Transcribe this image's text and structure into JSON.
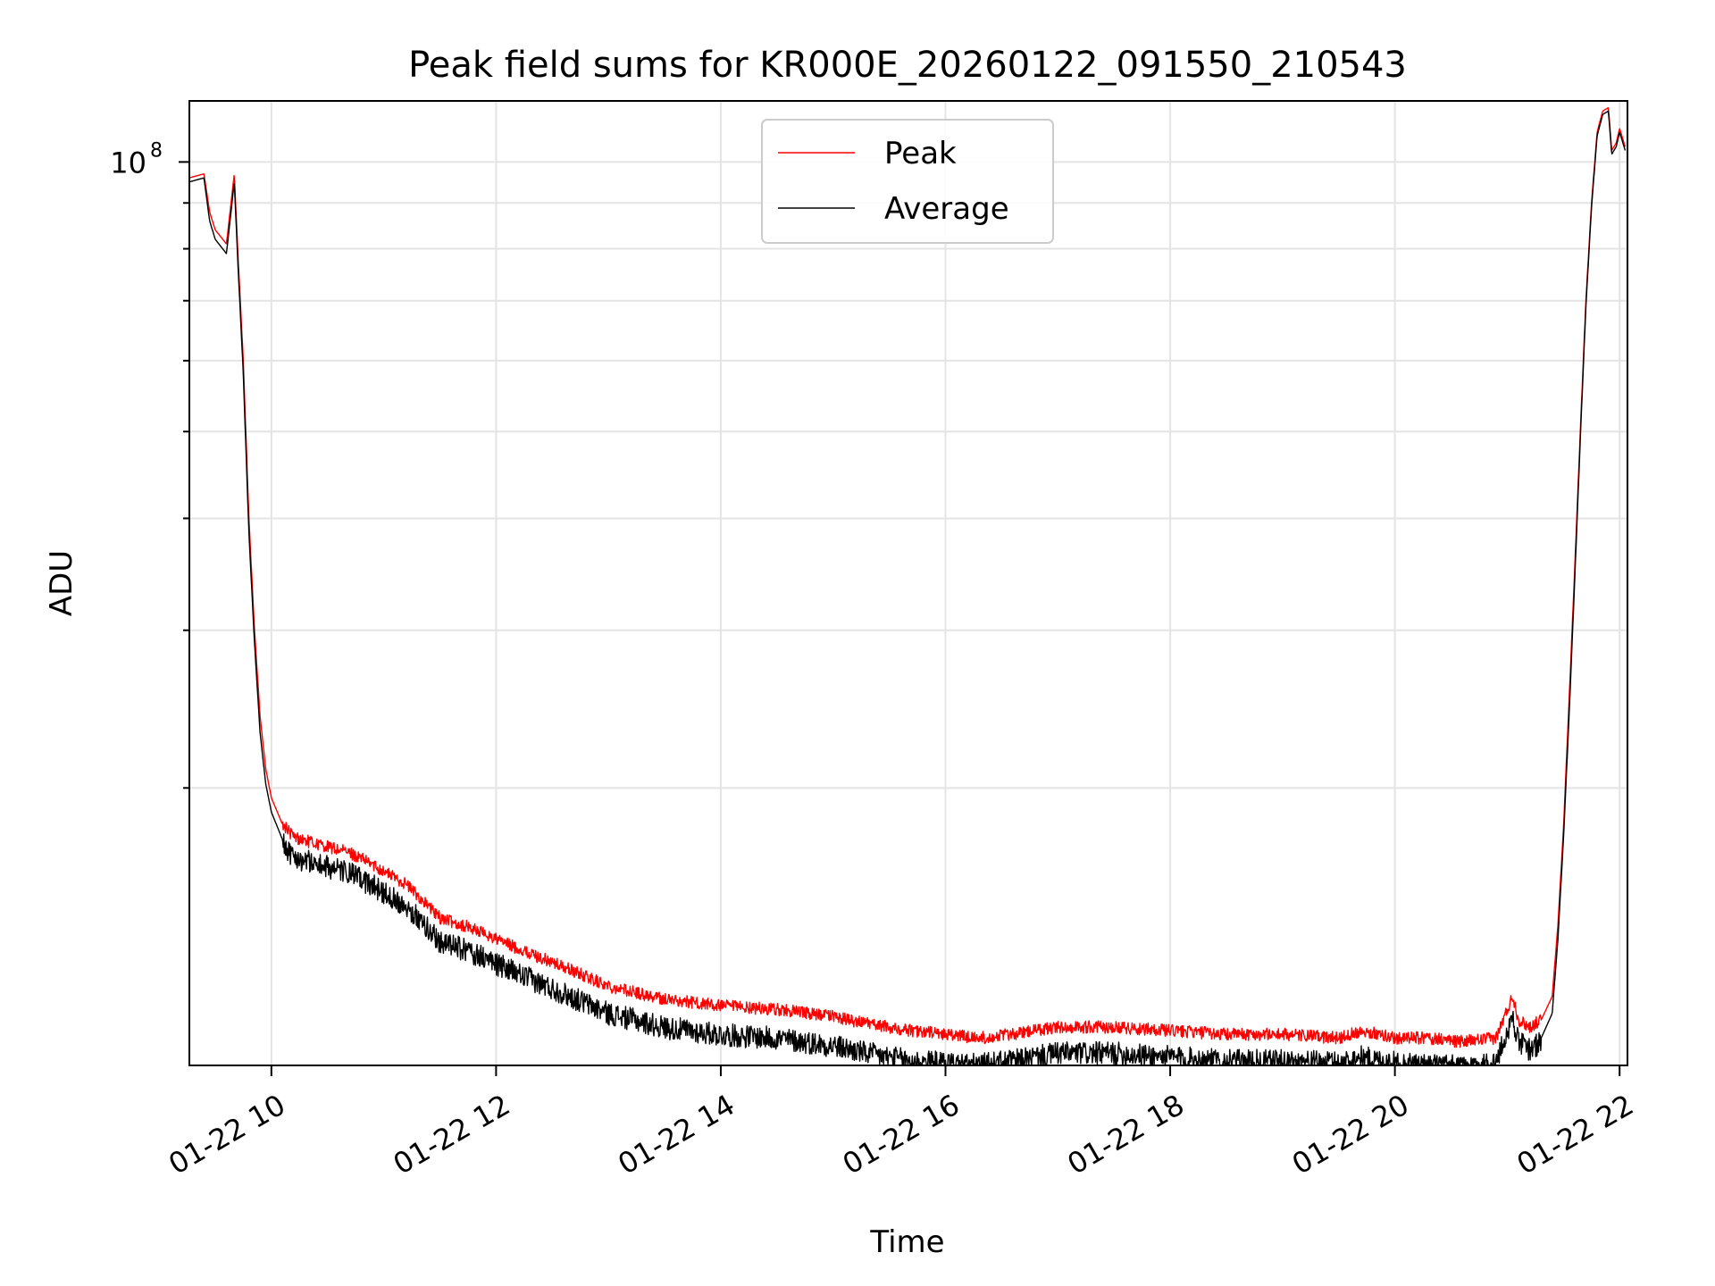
{
  "chart_data": {
    "type": "line",
    "title": "Peak field sums for KR000E_20260122_091550_210543",
    "xlabel": "Time",
    "ylabel": "ADU",
    "x_unit": "hour of day (01-22)",
    "xlim": [
      9.27,
      22.07
    ],
    "ylim": [
      9800000,
      117000000
    ],
    "yscale": "log",
    "grid": true,
    "legend_position": "upper center",
    "x_tick_values": [
      10,
      12,
      14,
      16,
      18,
      20,
      22
    ],
    "x_tick_labels": [
      "01-22 10",
      "01-22 12",
      "01-22 14",
      "01-22 16",
      "01-22 18",
      "01-22 20",
      "01-22 22"
    ],
    "y_tick_values": [
      100000000
    ],
    "y_tick_labels": [
      "10"
    ],
    "y_tick_exponents": [
      "8"
    ],
    "y_minor_tick_values": [
      20000000,
      30000000,
      40000000,
      50000000,
      60000000,
      70000000,
      80000000,
      90000000
    ],
    "series": [
      {
        "name": "Peak",
        "color": "#ff0000",
        "x": [
          9.27,
          9.4,
          9.45,
          9.5,
          9.6,
          9.67,
          9.7,
          9.75,
          9.8,
          9.85,
          9.9,
          9.95,
          10.0,
          10.1,
          10.2,
          10.4,
          10.7,
          10.9,
          11.2,
          11.5,
          11.8,
          12.2,
          12.6,
          13.0,
          13.5,
          14.0,
          14.5,
          15.0,
          15.3,
          15.7,
          16.0,
          16.3,
          16.6,
          17.0,
          17.5,
          18.0,
          18.5,
          19.0,
          19.5,
          19.7,
          20.0,
          20.3,
          20.6,
          20.9,
          21.05,
          21.1,
          21.2,
          21.3,
          21.4,
          21.45,
          21.5,
          21.55,
          21.6,
          21.65,
          21.7,
          21.75,
          21.8,
          21.85,
          21.9,
          21.93,
          21.97,
          22.0,
          22.05
        ],
        "values": [
          96000000,
          97000000,
          88000000,
          84000000,
          81000000,
          97000000,
          80000000,
          60000000,
          40000000,
          30000000,
          24000000,
          21000000,
          19500000,
          18200000,
          17600000,
          17300000,
          16900000,
          16400000,
          15600000,
          14300000,
          13900000,
          13200000,
          12600000,
          12000000,
          11600000,
          11400000,
          11300000,
          11100000,
          10900000,
          10700000,
          10600000,
          10500000,
          10600000,
          10800000,
          10800000,
          10700000,
          10600000,
          10600000,
          10500000,
          10700000,
          10500000,
          10500000,
          10400000,
          10500000,
          11700000,
          11000000,
          10800000,
          11000000,
          11700000,
          14000000,
          18000000,
          25000000,
          35000000,
          50000000,
          70000000,
          90000000,
          108000000,
          114000000,
          115000000,
          103000000,
          105000000,
          109000000,
          104000000
        ]
      },
      {
        "name": "Average",
        "color": "#000000",
        "x": [
          9.27,
          9.4,
          9.45,
          9.5,
          9.6,
          9.67,
          9.7,
          9.75,
          9.8,
          9.85,
          9.9,
          9.95,
          10.0,
          10.1,
          10.2,
          10.4,
          10.7,
          10.9,
          11.2,
          11.5,
          11.8,
          12.2,
          12.6,
          13.0,
          13.5,
          14.0,
          14.5,
          15.0,
          15.3,
          15.7,
          16.0,
          16.3,
          16.6,
          17.0,
          17.5,
          18.0,
          18.5,
          19.0,
          19.5,
          19.7,
          20.0,
          20.3,
          20.6,
          20.9,
          21.05,
          21.1,
          21.2,
          21.3,
          21.4,
          21.45,
          21.5,
          21.55,
          21.6,
          21.65,
          21.7,
          21.75,
          21.8,
          21.85,
          21.9,
          21.93,
          21.97,
          22.0,
          22.05
        ],
        "values": [
          95000000,
          96000000,
          86000000,
          82000000,
          79000000,
          95000000,
          78000000,
          58000000,
          38500000,
          29000000,
          23000000,
          20200000,
          18800000,
          17500000,
          16900000,
          16600000,
          16200000,
          15700000,
          14900000,
          13600000,
          13200000,
          12500000,
          11900000,
          11300000,
          10900000,
          10700000,
          10600000,
          10400000,
          10200000,
          10000000,
          9950000,
          9900000,
          10000000,
          10200000,
          10200000,
          10100000,
          10000000,
          10000000,
          9950000,
          10100000,
          9950000,
          9900000,
          9850000,
          9950000,
          11200000,
          10500000,
          10300000,
          10500000,
          11200000,
          13500000,
          17500000,
          24000000,
          34000000,
          49000000,
          69000000,
          89000000,
          107000000,
          113000000,
          114000000,
          102000000,
          104000000,
          108000000,
          103000000
        ]
      }
    ]
  }
}
